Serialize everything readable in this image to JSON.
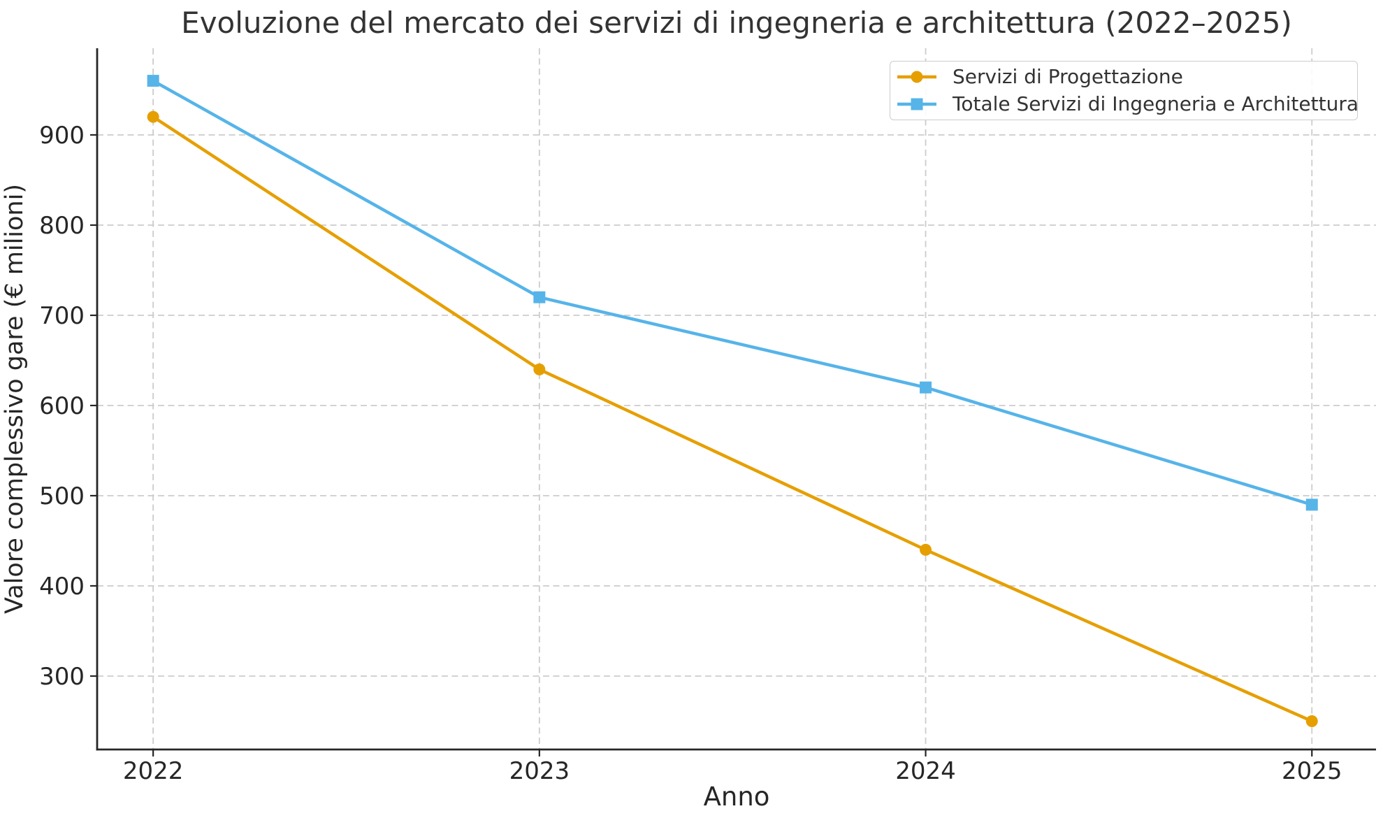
{
  "chart_data": {
    "type": "line",
    "title": "Evoluzione del mercato dei servizi di ingegneria e architettura (2022–2025)",
    "xlabel": "Anno",
    "ylabel": "Valore complessivo gare (€ milioni)",
    "x": [
      2022,
      2023,
      2024,
      2025
    ],
    "xticklabels": [
      "2022",
      "2023",
      "2024",
      "2025"
    ],
    "yticks": [
      300,
      400,
      500,
      600,
      700,
      800,
      900
    ],
    "ylim": [
      218.6,
      996.1
    ],
    "xlim": [
      2021.855,
      2025.166
    ],
    "grid": true,
    "grid_style": "dashed",
    "legend_position": "upper right",
    "series": [
      {
        "name": "Servizi di Progettazione",
        "marker": "circle",
        "color": "#E69F00",
        "values": [
          920,
          640,
          440,
          250
        ]
      },
      {
        "name": "Totale Servizi di Ingegneria e Architettura",
        "marker": "square",
        "color": "#56B4E9",
        "values": [
          960,
          720,
          620,
          490
        ]
      }
    ],
    "colors": {
      "grid": "#cccccc",
      "spine": "#262626",
      "text": "#333333"
    }
  }
}
